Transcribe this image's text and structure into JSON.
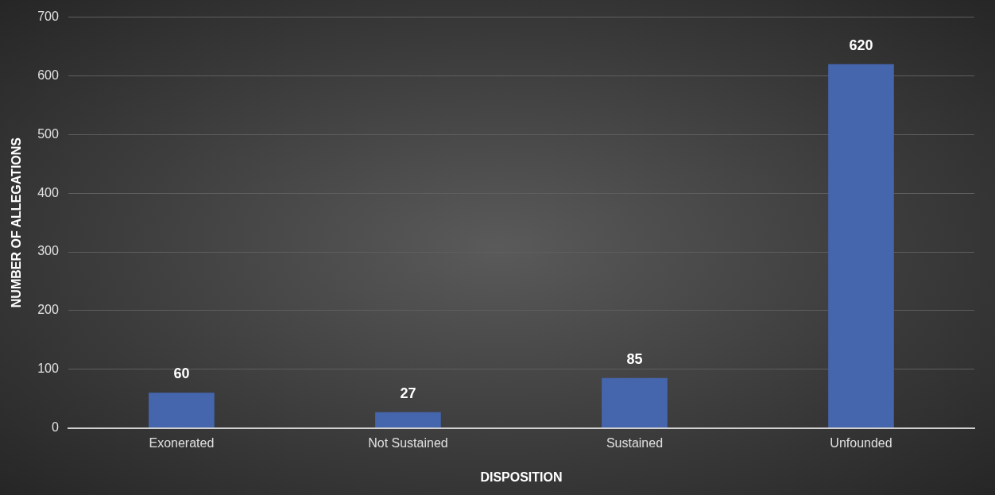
{
  "chart_data": {
    "type": "bar",
    "xlabel": "DISPOSITION",
    "ylabel": "NUMBER OF ALLEGATIONS",
    "categories": [
      "Exonerated",
      "Not Sustained",
      "Sustained",
      "Unfounded"
    ],
    "values": [
      60,
      27,
      85,
      620
    ],
    "color": "#4565ad",
    "ylim": [
      0,
      700
    ],
    "yticks": [
      0,
      100,
      200,
      300,
      400,
      500,
      600,
      700
    ],
    "grid": "y",
    "data_labels": true,
    "legend": false
  }
}
